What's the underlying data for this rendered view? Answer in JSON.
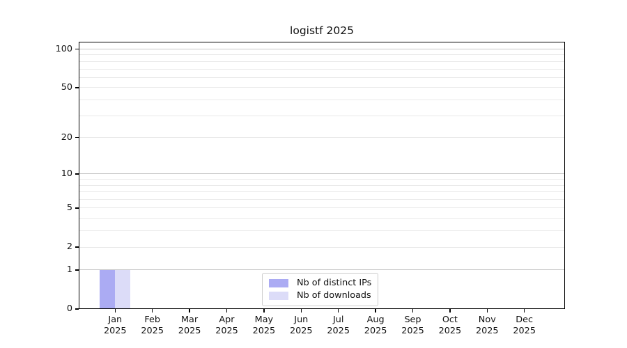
{
  "chart_data": {
    "type": "bar",
    "title": "logistf 2025",
    "categories": [
      "Jan 2025",
      "Feb 2025",
      "Mar 2025",
      "Apr 2025",
      "May 2025",
      "Jun 2025",
      "Jul 2025",
      "Aug 2025",
      "Sep 2025",
      "Oct 2025",
      "Nov 2025",
      "Dec 2025"
    ],
    "months": [
      "Jan",
      "Feb",
      "Mar",
      "Apr",
      "May",
      "Jun",
      "Jul",
      "Aug",
      "Sep",
      "Oct",
      "Nov",
      "Dec"
    ],
    "year": "2025",
    "series": [
      {
        "name": "Nb of distinct IPs",
        "color": "#ababf3",
        "values": [
          1,
          0,
          0,
          0,
          0,
          0,
          0,
          0,
          0,
          0,
          0,
          0
        ]
      },
      {
        "name": "Nb of downloads",
        "color": "#dcdcf8",
        "values": [
          1,
          0,
          0,
          0,
          0,
          0,
          0,
          0,
          0,
          0,
          0,
          0
        ]
      }
    ],
    "xlabel": "",
    "ylabel": "",
    "yscale": "log1p",
    "ylim": [
      0,
      114
    ],
    "yticks": [
      0,
      1,
      2,
      5,
      10,
      20,
      50,
      100
    ],
    "grid": {
      "show": true,
      "major_values": [
        1,
        10,
        100
      ],
      "minor_values": [
        2,
        3,
        4,
        5,
        6,
        7,
        8,
        9,
        20,
        30,
        40,
        50,
        60,
        70,
        80,
        90
      ]
    },
    "legend": {
      "position": "lower center"
    },
    "colors": {
      "axis": "#000000",
      "grid_major": "#c6c6c6",
      "grid_minor": "#e9e9e9",
      "background": "#ffffff",
      "legend_border": "#cccccc",
      "tick_label": "#111111"
    }
  }
}
